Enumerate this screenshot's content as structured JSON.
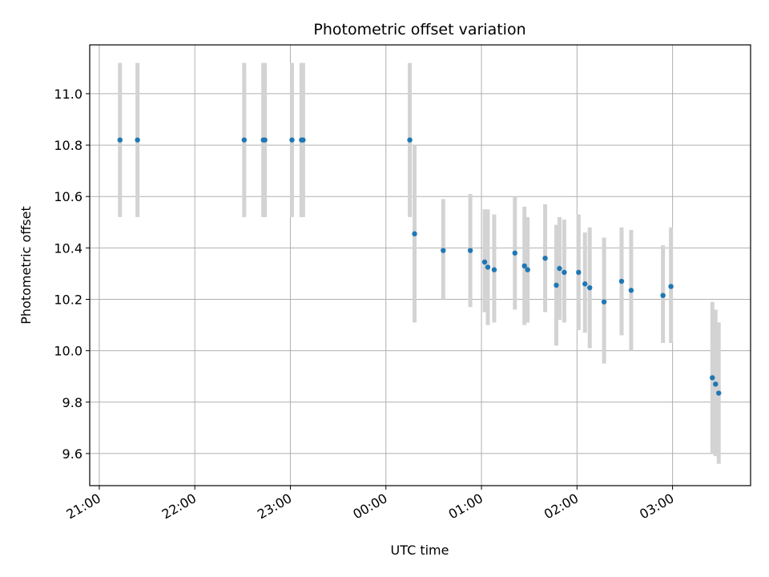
{
  "chart_data": {
    "type": "scatter",
    "title": "Photometric offset variation",
    "xlabel": "UTC time",
    "ylabel": "Photometric offset",
    "x_tick_labels": [
      "21:00",
      "22:00",
      "23:00",
      "00:00",
      "01:00",
      "02:00",
      "03:00"
    ],
    "y_tick_labels": [
      "9.6",
      "9.8",
      "10.0",
      "10.2",
      "10.4",
      "10.6",
      "10.8",
      "11.0"
    ],
    "y_ticks": [
      9.6,
      9.8,
      10.0,
      10.2,
      10.4,
      10.6,
      10.8,
      11.0
    ],
    "xlim": [
      "20:54",
      "03:49"
    ],
    "ylim": [
      9.475,
      11.19
    ],
    "grid": true,
    "marker_color": "#1f77b4",
    "errorbar_color": "#d3d3d3",
    "points": [
      {
        "t": "21:13",
        "y": 10.82,
        "lo": 10.52,
        "hi": 11.12
      },
      {
        "t": "21:24",
        "y": 10.82,
        "lo": 10.52,
        "hi": 11.12
      },
      {
        "t": "22:31",
        "y": 10.82,
        "lo": 10.52,
        "hi": 11.12
      },
      {
        "t": "22:43",
        "y": 10.82,
        "lo": 10.52,
        "hi": 11.12
      },
      {
        "t": "22:44",
        "y": 10.82,
        "lo": 10.52,
        "hi": 11.12
      },
      {
        "t": "23:01",
        "y": 10.82,
        "lo": 10.52,
        "hi": 11.12
      },
      {
        "t": "23:07",
        "y": 10.82,
        "lo": 10.52,
        "hi": 11.12
      },
      {
        "t": "23:08",
        "y": 10.82,
        "lo": 10.52,
        "hi": 11.12
      },
      {
        "t": "00:15",
        "y": 10.82,
        "lo": 10.52,
        "hi": 11.12
      },
      {
        "t": "00:18",
        "y": 10.455,
        "lo": 10.11,
        "hi": 10.8
      },
      {
        "t": "00:36",
        "y": 10.39,
        "lo": 10.2,
        "hi": 10.59
      },
      {
        "t": "00:53",
        "y": 10.39,
        "lo": 10.17,
        "hi": 10.61
      },
      {
        "t": "01:02",
        "y": 10.345,
        "lo": 10.15,
        "hi": 10.55
      },
      {
        "t": "01:04",
        "y": 10.325,
        "lo": 10.1,
        "hi": 10.55
      },
      {
        "t": "01:08",
        "y": 10.315,
        "lo": 10.11,
        "hi": 10.53
      },
      {
        "t": "01:21",
        "y": 10.38,
        "lo": 10.16,
        "hi": 10.6
      },
      {
        "t": "01:27",
        "y": 10.33,
        "lo": 10.1,
        "hi": 10.56
      },
      {
        "t": "01:29",
        "y": 10.315,
        "lo": 10.11,
        "hi": 10.52
      },
      {
        "t": "01:40",
        "y": 10.36,
        "lo": 10.15,
        "hi": 10.57
      },
      {
        "t": "01:47",
        "y": 10.255,
        "lo": 10.02,
        "hi": 10.49
      },
      {
        "t": "01:49",
        "y": 10.32,
        "lo": 10.12,
        "hi": 10.52
      },
      {
        "t": "01:52",
        "y": 10.305,
        "lo": 10.11,
        "hi": 10.51
      },
      {
        "t": "02:01",
        "y": 10.305,
        "lo": 10.08,
        "hi": 10.53
      },
      {
        "t": "02:05",
        "y": 10.26,
        "lo": 10.07,
        "hi": 10.46
      },
      {
        "t": "02:08",
        "y": 10.245,
        "lo": 10.01,
        "hi": 10.48
      },
      {
        "t": "02:17",
        "y": 10.19,
        "lo": 9.95,
        "hi": 10.44
      },
      {
        "t": "02:28",
        "y": 10.27,
        "lo": 10.06,
        "hi": 10.48
      },
      {
        "t": "02:34",
        "y": 10.235,
        "lo": 10.0,
        "hi": 10.47
      },
      {
        "t": "02:54",
        "y": 10.215,
        "lo": 10.03,
        "hi": 10.41
      },
      {
        "t": "02:59",
        "y": 10.25,
        "lo": 10.03,
        "hi": 10.48
      },
      {
        "t": "03:25",
        "y": 9.895,
        "lo": 9.6,
        "hi": 10.19
      },
      {
        "t": "03:27",
        "y": 9.87,
        "lo": 9.59,
        "hi": 10.16
      },
      {
        "t": "03:29",
        "y": 9.835,
        "lo": 9.56,
        "hi": 10.11
      }
    ]
  }
}
